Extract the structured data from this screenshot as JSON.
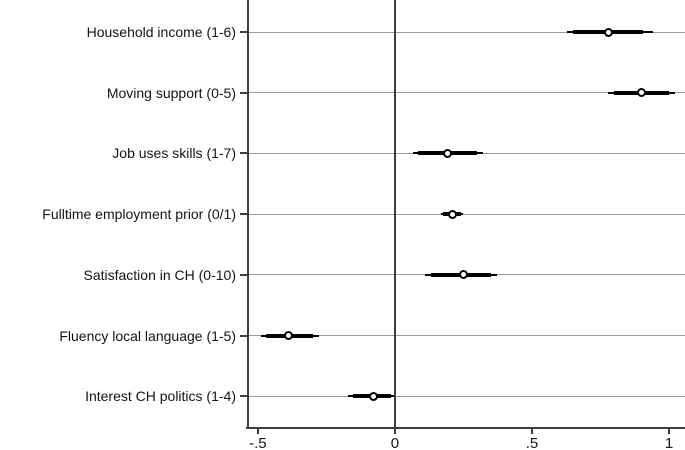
{
  "figure": {
    "kind": "stata-style coefficient (dot-and-whisker) plot",
    "background": "#ffffff"
  },
  "chart_data": {
    "type": "scatter",
    "subtype": "dot-whisker coefficient plot, horizontal",
    "title": "",
    "xlabel": "",
    "ylabel": "",
    "grid": true,
    "legend": "none",
    "xlim": [
      -0.536,
      1.058
    ],
    "zero_reference_line": 0,
    "x_ticks": [
      {
        "value": -0.5,
        "label": "-.5"
      },
      {
        "value": 0,
        "label": "0"
      },
      {
        "value": 0.5,
        "label": ".5"
      },
      {
        "value": 1,
        "label": "1"
      }
    ],
    "categories": [
      "Household income (1-6)",
      "Moving support (0-5)",
      "Job uses skills (1-7)",
      "Fulltime employment prior (0/1)",
      "Satisfaction in CH (0-10)",
      "Fluency local language (1-5)",
      "Interest CH politics (1-4)"
    ],
    "estimates": [
      0.78,
      0.9,
      0.19,
      0.21,
      0.25,
      -0.39,
      -0.08
    ],
    "ci_thick": [
      [
        0.65,
        0.905
      ],
      [
        0.8,
        1.0
      ],
      [
        0.084,
        0.299
      ],
      [
        0.175,
        0.241
      ],
      [
        0.131,
        0.35
      ],
      [
        -0.471,
        -0.299
      ],
      [
        -0.153,
        -0.015
      ]
    ],
    "ci_thin": [
      [
        0.628,
        0.94
      ],
      [
        0.777,
        1.022
      ],
      [
        0.066,
        0.321
      ],
      [
        0.168,
        0.248
      ],
      [
        0.109,
        0.372
      ],
      [
        -0.489,
        -0.277
      ],
      [
        -0.172,
        -0.004
      ]
    ],
    "colors": {
      "marker": "#000000",
      "whisker": "#000000",
      "axis": "#3f3f3f",
      "gridline": "#9a9a9a",
      "text": "#141414"
    }
  }
}
